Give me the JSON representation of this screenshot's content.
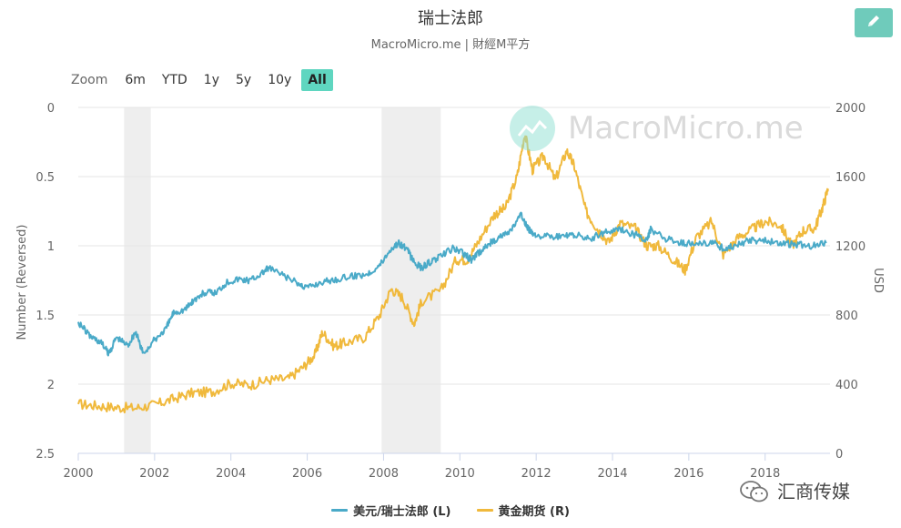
{
  "header": {
    "title": "瑞士法郎",
    "subtitle": "MacroMicro.me | 財經M平方"
  },
  "toolbar": {
    "edit_icon": "pencil-icon"
  },
  "zoom": {
    "label": "Zoom",
    "options": [
      "6m",
      "YTD",
      "1y",
      "5y",
      "10y",
      "All"
    ],
    "active": "All"
  },
  "watermark": {
    "text": "MacroMicro.me"
  },
  "corner_mark": {
    "text": "汇商传媒",
    "icon": "wechat-icon"
  },
  "colors": {
    "usdchf": "#4aaac8",
    "gold": "#f0b93c",
    "recession": "#eeeeee",
    "grid": "#e6e6e6"
  },
  "chart_data": {
    "type": "line",
    "title": "瑞士法郎",
    "subtitle": "MacroMicro.me | 財經M平方",
    "x_range": [
      2000,
      2019.7
    ],
    "x_ticks": [
      "2000",
      "2002",
      "2004",
      "2006",
      "2008",
      "2010",
      "2012",
      "2014",
      "2016",
      "2018"
    ],
    "left_axis": {
      "label": "Number (Reversed)",
      "range": [
        0,
        2.5
      ],
      "reversed": true,
      "ticks": [
        "0",
        "0.5",
        "1",
        "1.5",
        "2",
        "2.5"
      ]
    },
    "right_axis": {
      "label": "USD",
      "range": [
        0,
        2000
      ],
      "ticks": [
        "0",
        "400",
        "800",
        "1200",
        "1600",
        "2000"
      ]
    },
    "grid": true,
    "legend_position": "bottom-center",
    "shaded_periods": [
      [
        2001.2,
        2001.9
      ],
      [
        2007.95,
        2009.5
      ]
    ],
    "series": [
      {
        "name": "美元/瑞士法郎 (L)",
        "axis": "left",
        "points": [
          [
            2000.0,
            1.55
          ],
          [
            2000.3,
            1.65
          ],
          [
            2000.6,
            1.7
          ],
          [
            2000.8,
            1.78
          ],
          [
            2001.0,
            1.66
          ],
          [
            2001.3,
            1.72
          ],
          [
            2001.5,
            1.62
          ],
          [
            2001.7,
            1.78
          ],
          [
            2002.0,
            1.68
          ],
          [
            2002.3,
            1.6
          ],
          [
            2002.5,
            1.48
          ],
          [
            2002.8,
            1.46
          ],
          [
            2003.0,
            1.4
          ],
          [
            2003.3,
            1.34
          ],
          [
            2003.6,
            1.34
          ],
          [
            2003.9,
            1.26
          ],
          [
            2004.2,
            1.24
          ],
          [
            2004.5,
            1.25
          ],
          [
            2004.8,
            1.2
          ],
          [
            2005.0,
            1.16
          ],
          [
            2005.4,
            1.22
          ],
          [
            2005.8,
            1.28
          ],
          [
            2006.0,
            1.3
          ],
          [
            2006.4,
            1.26
          ],
          [
            2006.8,
            1.24
          ],
          [
            2007.2,
            1.22
          ],
          [
            2007.6,
            1.2
          ],
          [
            2007.9,
            1.14
          ],
          [
            2008.2,
            1.02
          ],
          [
            2008.4,
            0.98
          ],
          [
            2008.6,
            1.02
          ],
          [
            2008.8,
            1.12
          ],
          [
            2009.0,
            1.16
          ],
          [
            2009.2,
            1.12
          ],
          [
            2009.5,
            1.08
          ],
          [
            2009.8,
            1.02
          ],
          [
            2010.0,
            1.04
          ],
          [
            2010.3,
            1.1
          ],
          [
            2010.5,
            1.05
          ],
          [
            2010.8,
            0.98
          ],
          [
            2011.0,
            0.94
          ],
          [
            2011.3,
            0.9
          ],
          [
            2011.6,
            0.78
          ],
          [
            2011.8,
            0.88
          ],
          [
            2012.0,
            0.92
          ],
          [
            2012.4,
            0.94
          ],
          [
            2012.8,
            0.93
          ],
          [
            2013.0,
            0.92
          ],
          [
            2013.4,
            0.95
          ],
          [
            2013.8,
            0.9
          ],
          [
            2014.2,
            0.88
          ],
          [
            2014.6,
            0.92
          ],
          [
            2014.9,
            0.97
          ],
          [
            2015.0,
            0.88
          ],
          [
            2015.4,
            0.95
          ],
          [
            2015.8,
            0.98
          ],
          [
            2016.2,
            0.99
          ],
          [
            2016.6,
            0.97
          ],
          [
            2016.9,
            1.02
          ],
          [
            2017.2,
            1.0
          ],
          [
            2017.6,
            0.96
          ],
          [
            2018.0,
            0.96
          ],
          [
            2018.4,
            0.98
          ],
          [
            2018.8,
            0.99
          ],
          [
            2019.2,
            1.0
          ],
          [
            2019.6,
            0.98
          ]
        ]
      },
      {
        "name": "黄金期货 (R)",
        "axis": "right",
        "points": [
          [
            2000.0,
            285
          ],
          [
            2000.5,
            275
          ],
          [
            2001.0,
            265
          ],
          [
            2001.5,
            262
          ],
          [
            2002.0,
            280
          ],
          [
            2002.5,
            315
          ],
          [
            2003.0,
            350
          ],
          [
            2003.5,
            355
          ],
          [
            2004.0,
            405
          ],
          [
            2004.5,
            395
          ],
          [
            2005.0,
            425
          ],
          [
            2005.5,
            430
          ],
          [
            2005.9,
            500
          ],
          [
            2006.2,
            570
          ],
          [
            2006.4,
            700
          ],
          [
            2006.7,
            620
          ],
          [
            2007.0,
            640
          ],
          [
            2007.5,
            670
          ],
          [
            2007.9,
            800
          ],
          [
            2008.2,
            950
          ],
          [
            2008.5,
            900
          ],
          [
            2008.8,
            750
          ],
          [
            2009.0,
            880
          ],
          [
            2009.5,
            940
          ],
          [
            2009.9,
            1120
          ],
          [
            2010.2,
            1120
          ],
          [
            2010.5,
            1230
          ],
          [
            2010.9,
            1380
          ],
          [
            2011.2,
            1420
          ],
          [
            2011.5,
            1600
          ],
          [
            2011.7,
            1850
          ],
          [
            2011.9,
            1640
          ],
          [
            2012.2,
            1720
          ],
          [
            2012.5,
            1580
          ],
          [
            2012.8,
            1750
          ],
          [
            2013.0,
            1660
          ],
          [
            2013.3,
            1400
          ],
          [
            2013.6,
            1300
          ],
          [
            2013.9,
            1220
          ],
          [
            2014.2,
            1330
          ],
          [
            2014.6,
            1300
          ],
          [
            2014.9,
            1200
          ],
          [
            2015.2,
            1200
          ],
          [
            2015.6,
            1120
          ],
          [
            2015.9,
            1060
          ],
          [
            2016.2,
            1250
          ],
          [
            2016.6,
            1340
          ],
          [
            2016.9,
            1150
          ],
          [
            2017.3,
            1250
          ],
          [
            2017.7,
            1300
          ],
          [
            2018.0,
            1340
          ],
          [
            2018.4,
            1320
          ],
          [
            2018.7,
            1200
          ],
          [
            2019.0,
            1290
          ],
          [
            2019.3,
            1300
          ],
          [
            2019.5,
            1420
          ],
          [
            2019.65,
            1530
          ]
        ]
      }
    ]
  }
}
